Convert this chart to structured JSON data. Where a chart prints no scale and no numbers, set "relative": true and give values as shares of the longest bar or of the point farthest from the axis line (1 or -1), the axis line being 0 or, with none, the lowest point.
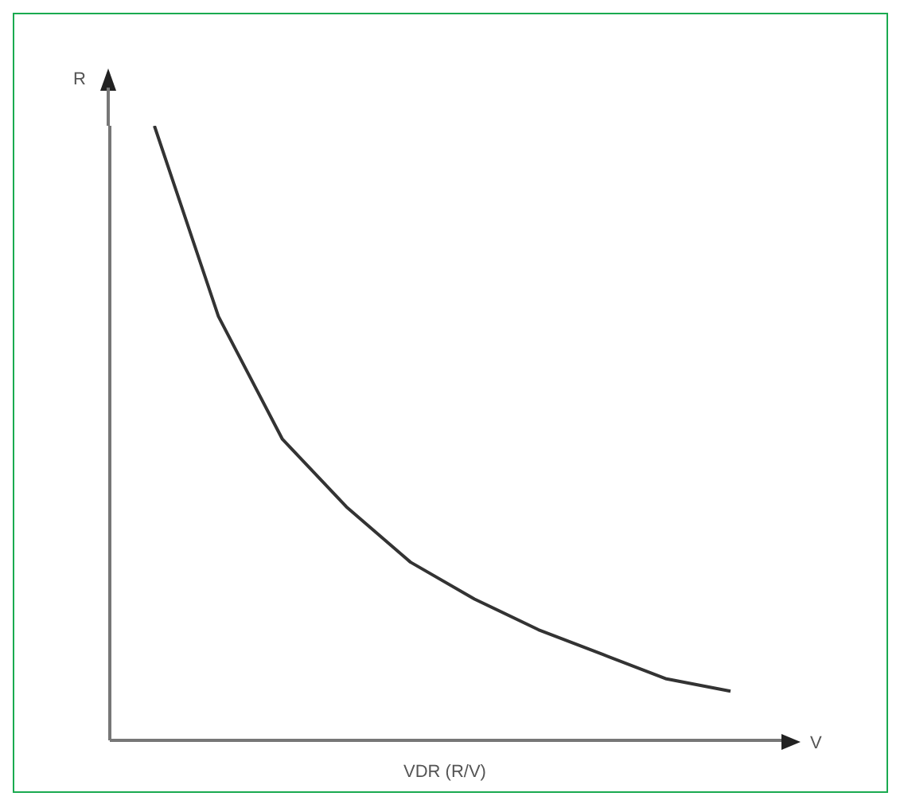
{
  "chart_data": {
    "type": "line",
    "title": "VDR (R/V)",
    "xlabel": "V",
    "ylabel": "R",
    "relative": true,
    "grid": false,
    "legend": false,
    "marker": "none",
    "line_style": "solid",
    "categories": [
      null,
      null,
      null,
      null,
      null,
      null,
      null,
      null,
      null,
      null
    ],
    "series": [
      {
        "color": "#333333",
        "values": [
          1,
          0.69,
          0.49,
          0.38,
          0.29,
          0.23,
          0.18,
          0.14,
          0.1,
          0.08
        ]
      }
    ]
  }
}
